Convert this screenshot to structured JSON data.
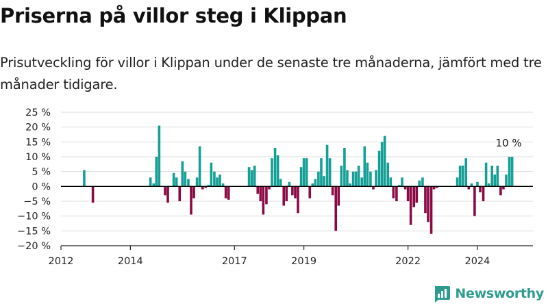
{
  "title": "Priserna på villor steg i Klippan",
  "subtitle": "Prisutveckling för villor i Klippan under de senaste tre månaderna, jämfört med tre månader tidigare.",
  "brand": "Newsworthy",
  "colors": {
    "positive": "#14a096",
    "negative": "#8b0a45",
    "grid": "#dddddd",
    "brand": "#2d9c8e"
  },
  "chart_data": {
    "type": "bar",
    "ylim": [
      -20,
      25
    ],
    "yticks": [
      25,
      20,
      15,
      10,
      5,
      0,
      -5,
      -10,
      -15,
      -20
    ],
    "ytick_labels": [
      "25 %",
      "20 %",
      "15 %",
      "10 %",
      "5 %",
      "0 %",
      "−5 %",
      "−10 %",
      "−15 %",
      "−20 %"
    ],
    "xlim": [
      2012.0,
      2025.6
    ],
    "xticks": [
      2012,
      2014,
      2017,
      2019,
      2022,
      2024
    ],
    "xtick_labels": [
      "2012",
      "2014",
      "2017",
      "2019",
      "2022",
      "2024"
    ],
    "grid": true,
    "annotation": "10 %",
    "series": [
      {
        "x": [
          2012.67,
          2012.92,
          2014.58,
          2014.67,
          2014.75,
          2014.83,
          2015.0,
          2015.08,
          2015.25,
          2015.33,
          2015.42,
          2015.5,
          2015.58,
          2015.67,
          2015.75,
          2015.83,
          2015.92,
          2016.0,
          2016.08,
          2016.17,
          2016.25,
          2016.33,
          2016.42,
          2016.5,
          2016.58,
          2016.67,
          2016.75,
          2016.83,
          2017.42,
          2017.5,
          2017.58,
          2017.67,
          2017.75,
          2017.83,
          2017.92,
          2018.0,
          2018.08,
          2018.17,
          2018.25,
          2018.33,
          2018.42,
          2018.5,
          2018.58,
          2018.67,
          2018.75,
          2018.83,
          2018.92,
          2019.0,
          2019.08,
          2019.17,
          2019.25,
          2019.33,
          2019.42,
          2019.5,
          2019.58,
          2019.67,
          2019.75,
          2019.83,
          2019.92,
          2020.0,
          2020.08,
          2020.17,
          2020.25,
          2020.33,
          2020.42,
          2020.5,
          2020.58,
          2020.67,
          2020.75,
          2020.83,
          2020.92,
          2021.0,
          2021.08,
          2021.17,
          2021.25,
          2021.33,
          2021.42,
          2021.5,
          2021.58,
          2021.67,
          2021.75,
          2021.83,
          2021.92,
          2022.0,
          2022.08,
          2022.17,
          2022.25,
          2022.33,
          2022.42,
          2022.5,
          2022.58,
          2022.67,
          2022.75,
          2022.83,
          2023.42,
          2023.5,
          2023.58,
          2023.67,
          2023.75,
          2023.83,
          2023.92,
          2024.0,
          2024.08,
          2024.17,
          2024.25,
          2024.33,
          2024.42,
          2024.5,
          2024.58,
          2024.67,
          2024.75,
          2024.83,
          2024.92,
          2025.0
        ],
        "values": [
          5.5,
          -5.5,
          3.0,
          1.0,
          10.0,
          20.5,
          -3.0,
          -5.5,
          4.5,
          3.0,
          -5.0,
          8.5,
          5.0,
          2.5,
          -9.5,
          -4.0,
          3.0,
          13.5,
          -1.0,
          -0.5,
          0.5,
          8.0,
          5.0,
          3.0,
          4.0,
          1.0,
          -4.0,
          -4.5,
          6.5,
          5.5,
          7.0,
          -2.5,
          -5.0,
          -9.5,
          -6.0,
          -1.0,
          9.5,
          13.0,
          10.5,
          2.5,
          -6.5,
          -5.0,
          1.5,
          -3.0,
          -4.0,
          -9.0,
          6.5,
          9.5,
          9.5,
          -4.0,
          1.0,
          2.5,
          5.0,
          9.5,
          3.5,
          14.0,
          9.5,
          -3.0,
          -15.0,
          -6.5,
          7.0,
          13.0,
          5.5,
          1.0,
          5.0,
          5.0,
          7.0,
          3.0,
          13.5,
          8.0,
          5.0,
          -1.0,
          5.5,
          12.0,
          15.0,
          17.0,
          8.0,
          3.0,
          -4.0,
          -5.0,
          0.5,
          3.0,
          -1.0,
          -5.0,
          -13.0,
          -7.0,
          -5.5,
          2.0,
          3.0,
          -9.0,
          -12.0,
          -16.0,
          -1.0,
          -0.5,
          3.0,
          7.0,
          7.0,
          9.5,
          -1.0,
          1.0,
          -10.0,
          1.5,
          -2.0,
          -5.0,
          8.0,
          1.0,
          7.0,
          4.0,
          7.0,
          -3.0,
          -1.0,
          4.0,
          10.0,
          10.0
        ]
      }
    ]
  }
}
